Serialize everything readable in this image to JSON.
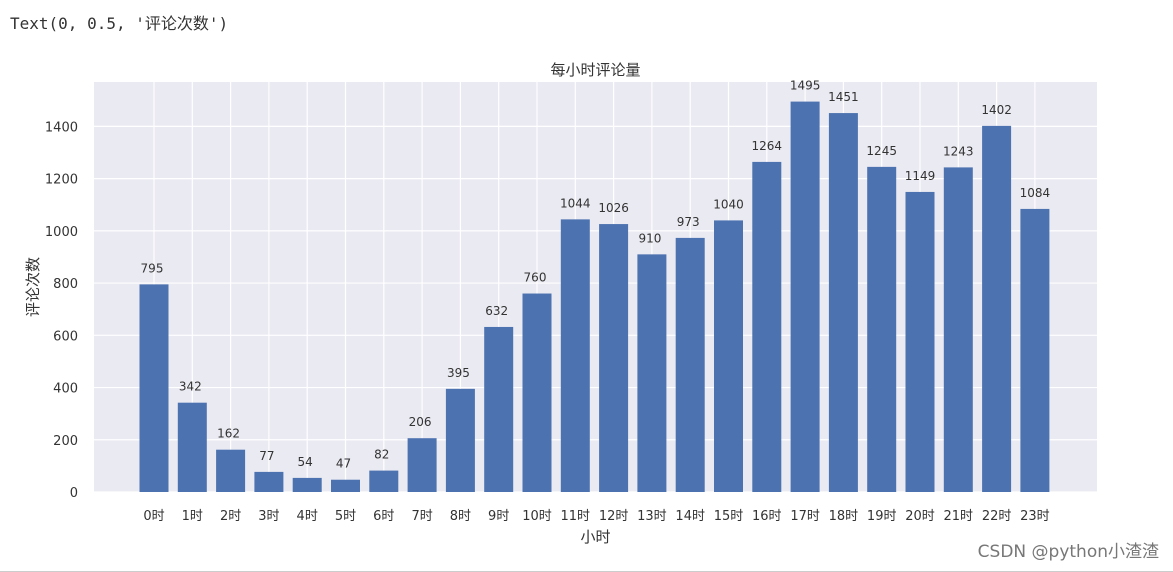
{
  "output_text": "Text(0, 0.5, '评论次数')",
  "watermark": "CSDN @python小渣渣",
  "colors": {
    "bar": "#4c72b0",
    "plot_bg": "#eaeaf2",
    "grid": "#ffffff",
    "text": "#333333"
  },
  "chart_data": {
    "type": "bar",
    "title": "每小时评论量",
    "xlabel": "小时",
    "ylabel": "评论次数",
    "ylim": [
      0,
      1570
    ],
    "yticks": [
      0,
      200,
      400,
      600,
      800,
      1000,
      1200,
      1400
    ],
    "grid": true,
    "categories": [
      "0时",
      "1时",
      "2时",
      "3时",
      "4时",
      "5时",
      "6时",
      "7时",
      "8时",
      "9时",
      "10时",
      "11时",
      "12时",
      "13时",
      "14时",
      "15时",
      "16时",
      "17时",
      "18时",
      "19时",
      "20时",
      "21时",
      "22时",
      "23时"
    ],
    "values": [
      795,
      342,
      162,
      77,
      54,
      47,
      82,
      206,
      395,
      632,
      760,
      1044,
      1026,
      910,
      973,
      1040,
      1264,
      1495,
      1451,
      1245,
      1149,
      1243,
      1402,
      1084
    ]
  }
}
